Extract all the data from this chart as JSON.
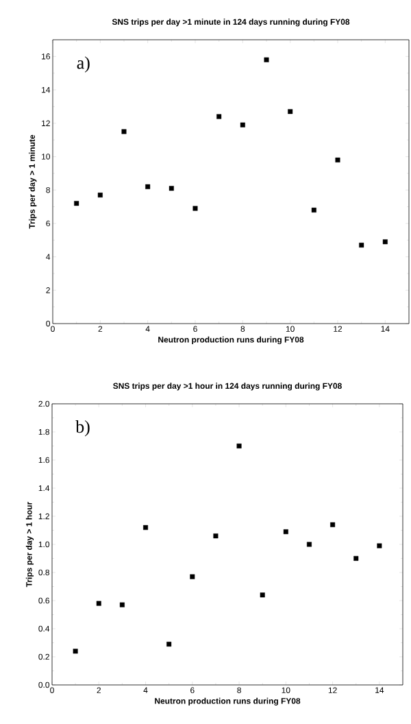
{
  "chart_data": [
    {
      "type": "scatter",
      "title": "SNS trips per day  >1 minute in 124 days running during FY08",
      "xlabel": "Neutron production runs during FY08",
      "ylabel": "Trips per day > 1 minute",
      "annotations": [
        "a)"
      ],
      "x": [
        1,
        2,
        3,
        4,
        5,
        6,
        7,
        8,
        9,
        10,
        11,
        12,
        13,
        14
      ],
      "values": [
        7.2,
        7.7,
        11.5,
        8.2,
        8.1,
        6.9,
        12.4,
        11.9,
        15.8,
        12.7,
        6.8,
        9.8,
        4.7,
        4.9
      ],
      "color": "#000000",
      "marker": "square",
      "xlim": [
        0,
        15
      ],
      "ylim": [
        0,
        17
      ],
      "xticks": [
        0,
        2,
        4,
        6,
        8,
        10,
        12,
        14
      ],
      "yticks": [
        0,
        2,
        4,
        6,
        8,
        10,
        12,
        14,
        16
      ],
      "grid": false
    },
    {
      "type": "scatter",
      "title": "SNS trips per day  >1 hour in 124 days running during FY08",
      "xlabel": "Neutron production runs during FY08",
      "ylabel": "Trips per day > 1 hour",
      "annotations": [
        "b)"
      ],
      "x": [
        1,
        2,
        3,
        4,
        5,
        6,
        7,
        8,
        9,
        10,
        11,
        12,
        13,
        14
      ],
      "values": [
        0.24,
        0.58,
        0.57,
        1.12,
        0.29,
        0.77,
        1.06,
        1.7,
        0.64,
        1.09,
        1.0,
        1.14,
        0.9,
        0.99
      ],
      "color": "#000000",
      "marker": "square",
      "xlim": [
        0,
        15
      ],
      "ylim": [
        0,
        2
      ],
      "xticks": [
        0,
        2,
        4,
        6,
        8,
        10,
        12,
        14
      ],
      "yticks": [
        {
          "value": 0,
          "label": "0.0"
        },
        {
          "value": 0.2,
          "label": "0.2"
        },
        {
          "value": 0.4,
          "label": "0.4"
        },
        {
          "value": 0.6,
          "label": "0.6"
        },
        {
          "value": 0.8,
          "label": "0.8"
        },
        {
          "value": 1.0,
          "label": "1.0"
        },
        {
          "value": 1.2,
          "label": "1.2"
        },
        {
          "value": 1.4,
          "label": "1.4"
        },
        {
          "value": 1.6,
          "label": "1.6"
        },
        {
          "value": 1.8,
          "label": "1.8"
        },
        {
          "value": 2.0,
          "label": "2.0"
        }
      ],
      "grid": false
    }
  ]
}
